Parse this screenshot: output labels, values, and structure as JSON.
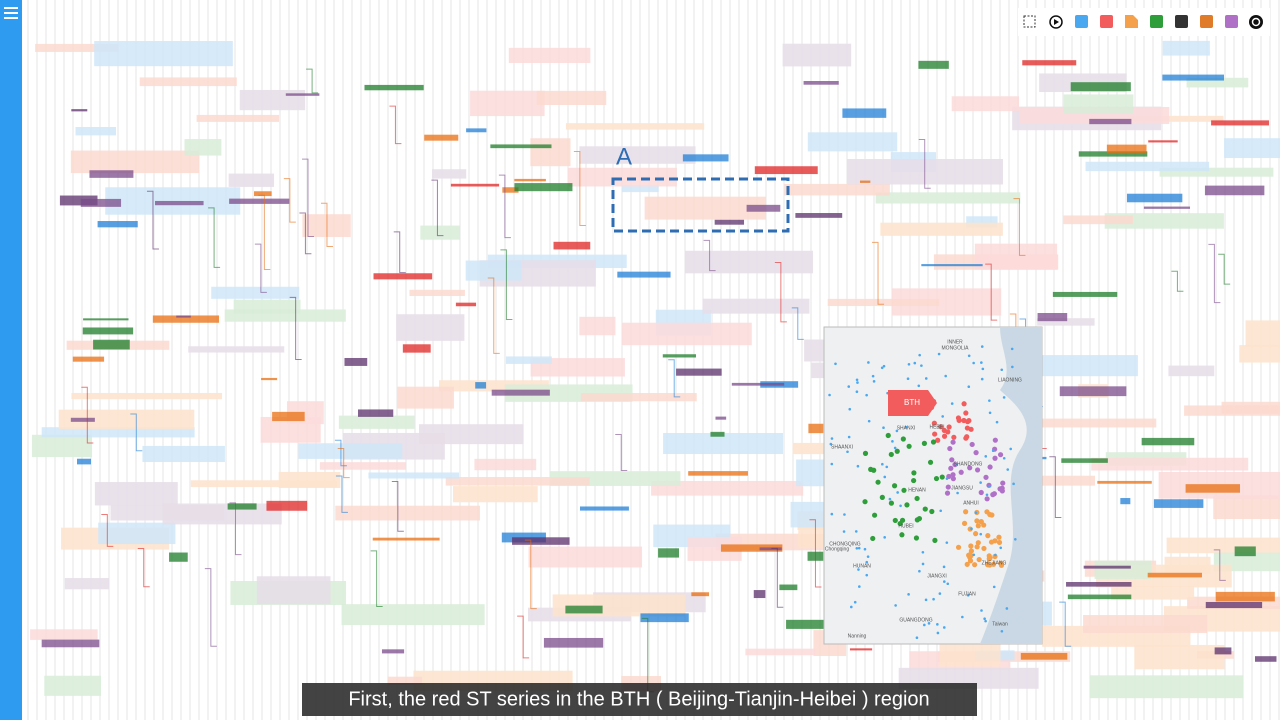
{
  "annotation": {
    "label": "A"
  },
  "map": {
    "badge": "BTH",
    "labels": [
      "INNER",
      "MONGOLIA",
      "LIAONING",
      "HEBEI",
      "SHANXI",
      "SHANDONG",
      "SHAANXI",
      "HENAN",
      "JIANGSU",
      "ANHUI",
      "HUBEI",
      "CHONGQING",
      "Chongqing",
      "HUNAN",
      "JIANGXI",
      "ZHEJIANG",
      "FUJIAN",
      "GUANGDONG",
      "Nanning",
      "Taiwan"
    ]
  },
  "caption": "First, the red ST series in the BTH ( Beijing-Tianjin-Heibei ) region"
}
